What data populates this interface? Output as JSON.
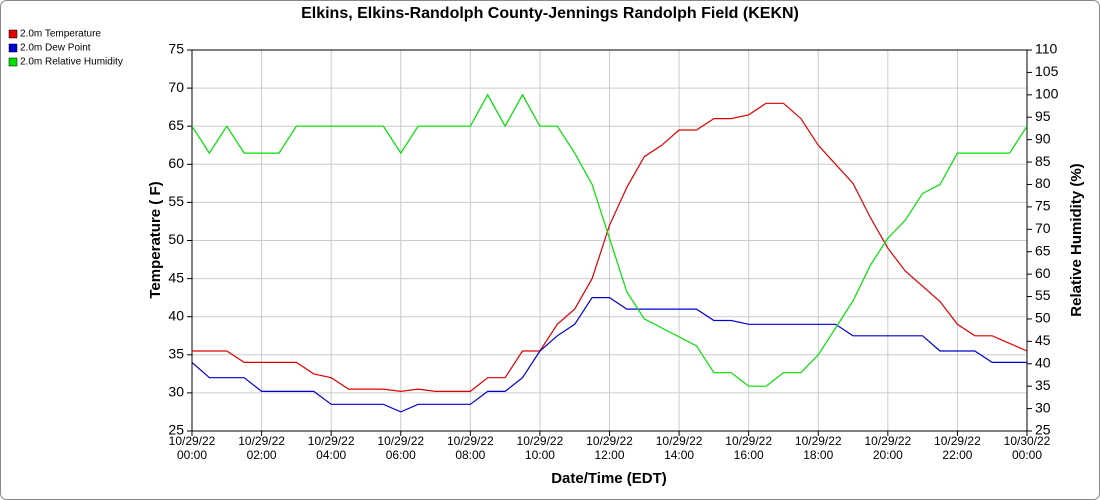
{
  "chart_data": {
    "type": "line",
    "title": "Elkins, Elkins-Randolph County-Jennings Randolph Field (KEKN)",
    "x_label": "Date/Time (EDT)",
    "y_label": "Temperature ( F)",
    "y2_label": "Relative Humidity (%)",
    "grid": true,
    "legend": "top-left",
    "x": [
      "10/29/22 00:00",
      "10/29/22 00:30",
      "10/29/22 01:00",
      "10/29/22 01:30",
      "10/29/22 02:00",
      "10/29/22 02:30",
      "10/29/22 03:00",
      "10/29/22 03:30",
      "10/29/22 04:00",
      "10/29/22 04:30",
      "10/29/22 05:00",
      "10/29/22 05:30",
      "10/29/22 06:00",
      "10/29/22 06:30",
      "10/29/22 07:00",
      "10/29/22 07:30",
      "10/29/22 08:00",
      "10/29/22 08:30",
      "10/29/22 09:00",
      "10/29/22 09:30",
      "10/29/22 10:00",
      "10/29/22 10:30",
      "10/29/22 11:00",
      "10/29/22 11:30",
      "10/29/22 12:00",
      "10/29/22 12:30",
      "10/29/22 13:00",
      "10/29/22 13:30",
      "10/29/22 14:00",
      "10/29/22 14:30",
      "10/29/22 15:00",
      "10/29/22 15:30",
      "10/29/22 16:00",
      "10/29/22 16:30",
      "10/29/22 17:00",
      "10/29/22 17:30",
      "10/29/22 18:00",
      "10/29/22 18:30",
      "10/29/22 19:00",
      "10/29/22 19:30",
      "10/29/22 20:00",
      "10/29/22 20:30",
      "10/29/22 21:00",
      "10/29/22 21:30",
      "10/29/22 22:00",
      "10/29/22 22:30",
      "10/29/22 23:00",
      "10/29/22 23:30",
      "10/30/22 00:00"
    ],
    "xlim": [
      "10/29/22 00:00",
      "10/30/22 00:00"
    ],
    "xticks": [
      {
        "value": "10/29/22 00:00",
        "label": [
          "10/29/22",
          "00:00"
        ]
      },
      {
        "value": "10/29/22 02:00",
        "label": [
          "10/29/22",
          "02:00"
        ]
      },
      {
        "value": "10/29/22 04:00",
        "label": [
          "10/29/22",
          "04:00"
        ]
      },
      {
        "value": "10/29/22 06:00",
        "label": [
          "10/29/22",
          "06:00"
        ]
      },
      {
        "value": "10/29/22 08:00",
        "label": [
          "10/29/22",
          "08:00"
        ]
      },
      {
        "value": "10/29/22 10:00",
        "label": [
          "10/29/22",
          "10:00"
        ]
      },
      {
        "value": "10/29/22 12:00",
        "label": [
          "10/29/22",
          "12:00"
        ]
      },
      {
        "value": "10/29/22 14:00",
        "label": [
          "10/29/22",
          "14:00"
        ]
      },
      {
        "value": "10/29/22 16:00",
        "label": [
          "10/29/22",
          "16:00"
        ]
      },
      {
        "value": "10/29/22 18:00",
        "label": [
          "10/29/22",
          "18:00"
        ]
      },
      {
        "value": "10/29/22 20:00",
        "label": [
          "10/29/22",
          "20:00"
        ]
      },
      {
        "value": "10/29/22 22:00",
        "label": [
          "10/29/22",
          "22:00"
        ]
      },
      {
        "value": "10/30/22 00:00",
        "label": [
          "10/30/22",
          "00:00"
        ]
      }
    ],
    "ylim": [
      25,
      75
    ],
    "yticks": [
      25,
      30,
      35,
      40,
      45,
      50,
      55,
      60,
      65,
      70,
      75
    ],
    "y2lim": [
      25,
      110
    ],
    "y2ticks": [
      25,
      30,
      35,
      40,
      45,
      50,
      55,
      60,
      65,
      70,
      75,
      80,
      85,
      90,
      95,
      100,
      105,
      110
    ],
    "series": [
      {
        "name": "2.0m Temperature",
        "color": "#e00000",
        "values": [
          35.5,
          35.5,
          35.5,
          34,
          34,
          34,
          34,
          32.5,
          32,
          30.5,
          30.5,
          30.5,
          30.2,
          30.5,
          30.2,
          30.2,
          30.2,
          32,
          32,
          35.5,
          35.5,
          39,
          41,
          45,
          52,
          57,
          61,
          62.5,
          64.5,
          64.5,
          66,
          66,
          66.5,
          68,
          68,
          66,
          62.5,
          60,
          57.5,
          53,
          49,
          46,
          44,
          42,
          39,
          37.5,
          37.5,
          36.5,
          35.5
        ]
      },
      {
        "name": "2.0m Dew Point",
        "color": "#0000d0",
        "values": [
          34,
          32,
          32,
          32,
          30.2,
          30.2,
          30.2,
          30.2,
          28.5,
          28.5,
          28.5,
          28.5,
          27.5,
          28.5,
          28.5,
          28.5,
          28.5,
          30.2,
          30.2,
          32,
          35.5,
          37.5,
          39,
          42.5,
          42.5,
          41,
          41,
          41,
          41,
          41,
          39.5,
          39.5,
          39,
          39,
          39,
          39,
          39,
          39,
          37.5,
          37.5,
          37.5,
          37.5,
          37.5,
          35.5,
          35.5,
          35.5,
          34,
          34,
          34
        ]
      },
      {
        "name": "2.0m Relative Humidity",
        "color": "#00e000",
        "axis": "y2",
        "values": [
          93,
          87,
          93,
          87,
          87,
          87,
          93,
          93,
          93,
          93,
          93,
          93,
          87,
          93,
          93,
          93,
          93,
          100,
          93,
          100,
          93,
          93,
          87,
          80,
          68,
          56,
          50,
          48,
          46,
          44,
          38,
          38,
          35,
          35,
          38,
          38,
          42,
          48,
          54,
          62,
          68,
          72,
          78,
          80,
          87,
          87,
          87,
          87,
          93
        ]
      }
    ]
  }
}
